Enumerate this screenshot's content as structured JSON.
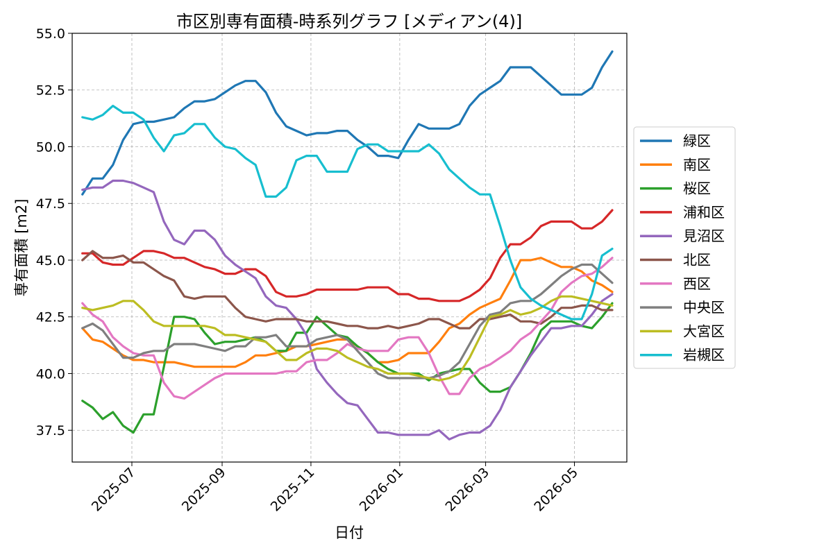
{
  "chart_data": {
    "type": "line",
    "title": "市区別専有面積-時系列グラフ [メディアン(4)]",
    "xlabel": "日付",
    "ylabel": "専有面積 [m2]",
    "xlim": [
      "2025-05-21",
      "2026-06-06"
    ],
    "ylim": [
      36.1,
      55.0
    ],
    "x_ticks": [
      "2025-07-01",
      "2025-09-01",
      "2025-11-01",
      "2026-01-01",
      "2026-03-01",
      "2026-05-01"
    ],
    "x_tick_labels": [
      "2025-07",
      "2025-09",
      "2025-11",
      "2026-01",
      "2026-03",
      "2026-05"
    ],
    "y_ticks": [
      37.5,
      40.0,
      42.5,
      45.0,
      47.5,
      50.0,
      52.5,
      55.0
    ],
    "y_tick_labels": [
      "37.5",
      "40.0",
      "42.5",
      "45.0",
      "47.5",
      "50.0",
      "52.5",
      "55.0"
    ],
    "grid": true,
    "legend_position": "right-outside",
    "x": [
      "2025-05-28",
      "2025-06-04",
      "2025-06-11",
      "2025-06-18",
      "2025-06-25",
      "2025-07-02",
      "2025-07-09",
      "2025-07-16",
      "2025-07-23",
      "2025-07-30",
      "2025-08-06",
      "2025-08-13",
      "2025-08-20",
      "2025-08-27",
      "2025-09-03",
      "2025-09-10",
      "2025-09-17",
      "2025-09-24",
      "2025-10-01",
      "2025-10-08",
      "2025-10-15",
      "2025-10-22",
      "2025-10-29",
      "2025-11-05",
      "2025-11-12",
      "2025-11-19",
      "2025-11-26",
      "2025-12-03",
      "2025-12-10",
      "2025-12-17",
      "2025-12-24",
      "2025-12-31",
      "2026-01-07",
      "2026-01-14",
      "2026-01-21",
      "2026-01-28",
      "2026-02-04",
      "2026-02-11",
      "2026-02-18",
      "2026-02-25",
      "2026-03-04",
      "2026-03-11",
      "2026-03-18",
      "2026-03-25",
      "2026-04-01",
      "2026-04-08",
      "2026-04-15",
      "2026-04-22",
      "2026-04-29",
      "2026-05-06",
      "2026-05-13",
      "2026-05-20",
      "2026-05-27"
    ],
    "series": [
      {
        "name": "緑区",
        "color": "#1f77b4",
        "values": [
          47.9,
          48.6,
          48.6,
          49.2,
          50.3,
          51.0,
          51.1,
          51.1,
          51.2,
          51.3,
          51.7,
          52.0,
          52.0,
          52.1,
          52.4,
          52.7,
          52.9,
          52.9,
          52.4,
          51.5,
          50.9,
          50.7,
          50.5,
          50.6,
          50.6,
          50.7,
          50.7,
          50.3,
          50.0,
          49.6,
          49.6,
          49.5,
          50.3,
          51.0,
          50.8,
          50.8,
          50.8,
          51.0,
          51.8,
          52.3,
          52.6,
          52.9,
          53.5,
          53.5,
          53.5,
          53.1,
          52.7,
          52.3,
          52.3,
          52.3,
          52.6,
          53.5,
          54.2
        ]
      },
      {
        "name": "南区",
        "color": "#ff7f0e",
        "values": [
          42.0,
          41.5,
          41.4,
          41.1,
          40.8,
          40.6,
          40.6,
          40.5,
          40.5,
          40.5,
          40.4,
          40.3,
          40.3,
          40.3,
          40.3,
          40.3,
          40.5,
          40.8,
          40.8,
          40.9,
          41.0,
          41.2,
          41.2,
          41.3,
          41.4,
          41.5,
          41.5,
          41.2,
          40.9,
          40.5,
          40.5,
          40.6,
          40.9,
          40.9,
          40.9,
          41.4,
          42.0,
          42.2,
          42.6,
          42.9,
          43.1,
          43.3,
          44.1,
          45.0,
          45.0,
          45.1,
          44.9,
          44.7,
          44.7,
          44.5,
          44.1,
          43.9,
          43.6
        ]
      },
      {
        "name": "桜区",
        "color": "#2ca02c",
        "values": [
          38.8,
          38.5,
          38.0,
          38.3,
          37.7,
          37.4,
          38.2,
          38.2,
          40.3,
          42.5,
          42.5,
          42.4,
          41.8,
          41.3,
          41.4,
          41.4,
          41.5,
          41.6,
          41.4,
          41.0,
          41.0,
          41.8,
          41.8,
          42.5,
          42.1,
          41.7,
          41.6,
          41.2,
          40.9,
          40.5,
          40.2,
          40.0,
          40.0,
          40.0,
          39.7,
          40.0,
          40.1,
          40.2,
          40.2,
          39.6,
          39.2,
          39.2,
          39.4,
          40.1,
          40.9,
          41.9,
          42.3,
          42.3,
          42.3,
          42.1,
          42.0,
          42.5,
          43.1
        ]
      },
      {
        "name": "浦和区",
        "color": "#d62728",
        "values": [
          45.3,
          45.3,
          44.9,
          44.8,
          44.8,
          45.1,
          45.4,
          45.4,
          45.3,
          45.1,
          45.1,
          44.9,
          44.7,
          44.6,
          44.4,
          44.4,
          44.6,
          44.6,
          44.3,
          43.6,
          43.4,
          43.4,
          43.5,
          43.7,
          43.7,
          43.7,
          43.7,
          43.7,
          43.8,
          43.8,
          43.8,
          43.5,
          43.5,
          43.3,
          43.3,
          43.2,
          43.2,
          43.2,
          43.4,
          43.7,
          44.2,
          45.1,
          45.7,
          45.7,
          46.0,
          46.5,
          46.7,
          46.7,
          46.7,
          46.4,
          46.4,
          46.7,
          47.2
        ]
      },
      {
        "name": "見沼区",
        "color": "#9467bd",
        "values": [
          48.1,
          48.2,
          48.2,
          48.5,
          48.5,
          48.4,
          48.2,
          48.0,
          46.7,
          45.9,
          45.7,
          46.3,
          46.3,
          45.9,
          45.2,
          44.8,
          44.5,
          44.2,
          43.4,
          43.0,
          42.9,
          42.4,
          41.7,
          40.2,
          39.6,
          39.1,
          38.7,
          38.6,
          38.0,
          37.4,
          37.4,
          37.3,
          37.3,
          37.3,
          37.3,
          37.5,
          37.1,
          37.3,
          37.4,
          37.4,
          37.7,
          38.4,
          39.4,
          40.1,
          40.8,
          41.4,
          42.0,
          42.0,
          42.1,
          42.1,
          42.6,
          43.2,
          43.5
        ]
      },
      {
        "name": "北区",
        "color": "#8c564b",
        "values": [
          45.0,
          45.4,
          45.1,
          45.1,
          45.2,
          44.9,
          44.9,
          44.6,
          44.3,
          44.1,
          43.4,
          43.3,
          43.4,
          43.4,
          43.4,
          42.9,
          42.5,
          42.4,
          42.3,
          42.4,
          42.4,
          42.4,
          42.3,
          42.3,
          42.3,
          42.2,
          42.1,
          42.1,
          42.0,
          42.0,
          42.1,
          42.0,
          42.1,
          42.2,
          42.4,
          42.4,
          42.2,
          42.0,
          42.0,
          42.4,
          42.4,
          42.5,
          42.6,
          42.3,
          42.3,
          42.2,
          42.5,
          42.9,
          42.9,
          43.0,
          43.0,
          42.8,
          42.8
        ]
      },
      {
        "name": "西区",
        "color": "#e377c2",
        "values": [
          43.1,
          42.6,
          42.3,
          41.6,
          41.2,
          40.9,
          40.8,
          40.8,
          39.6,
          39.0,
          38.9,
          39.2,
          39.5,
          39.8,
          40.0,
          40.0,
          40.0,
          40.0,
          40.0,
          40.0,
          40.1,
          40.1,
          40.5,
          40.6,
          40.6,
          40.9,
          41.3,
          41.1,
          41.0,
          41.0,
          41.0,
          41.5,
          41.6,
          41.6,
          40.9,
          39.9,
          39.1,
          39.1,
          39.8,
          40.2,
          40.4,
          40.7,
          41.0,
          41.5,
          41.8,
          42.3,
          42.8,
          43.6,
          44.0,
          44.3,
          44.4,
          44.7,
          45.1
        ]
      },
      {
        "name": "中央区",
        "color": "#7f7f7f",
        "values": [
          42.0,
          42.2,
          41.9,
          41.3,
          40.7,
          40.7,
          40.9,
          41.0,
          41.0,
          41.3,
          41.3,
          41.3,
          41.2,
          41.1,
          41.0,
          41.2,
          41.2,
          41.6,
          41.6,
          41.7,
          41.2,
          41.2,
          41.2,
          41.5,
          41.6,
          41.7,
          41.5,
          41.0,
          40.5,
          40.0,
          39.8,
          39.8,
          39.8,
          39.8,
          39.8,
          39.9,
          40.1,
          40.5,
          41.3,
          42.1,
          42.6,
          42.7,
          43.1,
          43.2,
          43.2,
          43.5,
          43.9,
          44.3,
          44.6,
          44.8,
          44.8,
          44.4,
          44.0
        ]
      },
      {
        "name": "大宮区",
        "color": "#bcbd22",
        "values": [
          42.9,
          42.8,
          42.9,
          43.0,
          43.2,
          43.2,
          42.8,
          42.3,
          42.1,
          42.1,
          42.1,
          42.1,
          42.1,
          42.0,
          41.7,
          41.7,
          41.6,
          41.5,
          41.4,
          41.0,
          40.6,
          40.6,
          40.9,
          41.1,
          41.1,
          41.0,
          40.7,
          40.5,
          40.3,
          40.2,
          40.0,
          40.0,
          40.0,
          39.9,
          39.8,
          39.7,
          39.8,
          40.0,
          40.7,
          41.6,
          42.5,
          42.6,
          42.8,
          42.6,
          42.7,
          42.9,
          43.2,
          43.4,
          43.4,
          43.3,
          43.2,
          43.1,
          43.0
        ]
      },
      {
        "name": "岩槻区",
        "color": "#17becf",
        "values": [
          51.3,
          51.2,
          51.4,
          51.8,
          51.5,
          51.5,
          51.2,
          50.4,
          49.8,
          50.5,
          50.6,
          51.0,
          51.0,
          50.4,
          50.0,
          49.9,
          49.5,
          49.2,
          47.8,
          47.8,
          48.2,
          49.4,
          49.6,
          49.6,
          48.9,
          48.9,
          48.9,
          49.9,
          50.1,
          50.1,
          49.8,
          49.8,
          49.8,
          49.8,
          50.1,
          49.7,
          49.0,
          48.6,
          48.2,
          47.9,
          47.9,
          46.5,
          45.0,
          43.8,
          43.3,
          43.0,
          42.8,
          42.6,
          42.4,
          42.4,
          43.5,
          45.2,
          45.5
        ]
      }
    ]
  }
}
